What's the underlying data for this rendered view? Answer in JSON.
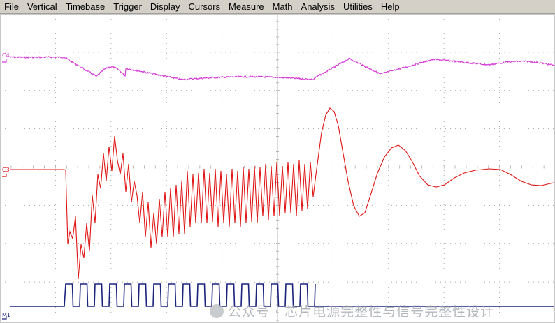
{
  "menu": {
    "items": [
      {
        "label": "File"
      },
      {
        "label": "Vertical"
      },
      {
        "label": "Timebase"
      },
      {
        "label": "Trigger"
      },
      {
        "label": "Display"
      },
      {
        "label": "Cursors"
      },
      {
        "label": "Measure"
      },
      {
        "label": "Math"
      },
      {
        "label": "Analysis"
      },
      {
        "label": "Utilities"
      },
      {
        "label": "Help"
      }
    ]
  },
  "channels": {
    "c4": {
      "label": "C4",
      "color": "#d63bd6"
    },
    "c3": {
      "label": "C3",
      "color": "#e01414"
    },
    "m1": {
      "label": "M1",
      "color": "#1a237e"
    }
  },
  "watermark": {
    "text": "公众号 · 芯片电源完整性与信号完整性设计"
  },
  "colors": {
    "grid": "#a8a8a8",
    "background": "#ffffff",
    "menubar": "#d4d0c8"
  }
}
